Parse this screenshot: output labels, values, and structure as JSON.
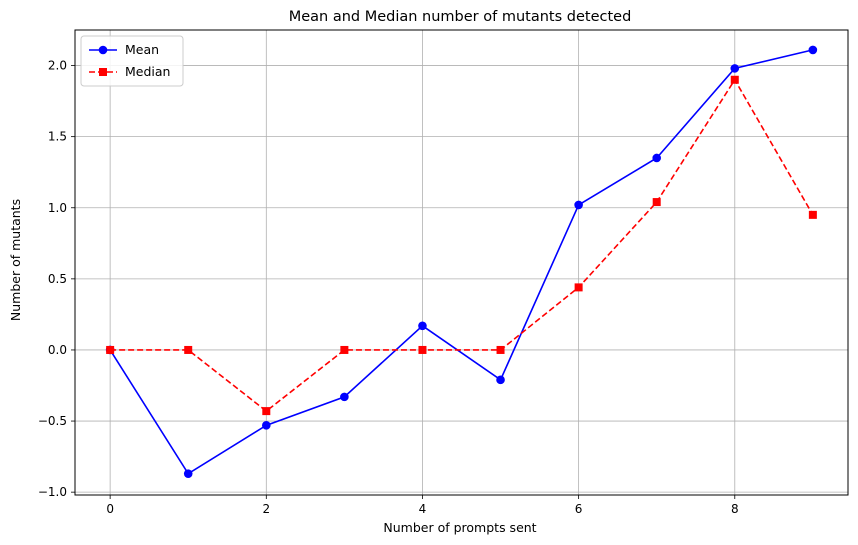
{
  "chart_data": {
    "type": "line",
    "title": "Mean and Median number of mutants detected",
    "xlabel": "Number of prompts sent",
    "ylabel": "Number of mutants",
    "x": [
      0,
      1,
      2,
      3,
      4,
      5,
      6,
      7,
      8,
      9
    ],
    "series": [
      {
        "name": "Mean",
        "values": [
          0.0,
          -0.87,
          -0.53,
          -0.33,
          0.17,
          -0.21,
          1.02,
          1.35,
          1.98,
          2.11
        ],
        "color": "#0000ff",
        "marker": "circle",
        "linestyle": "solid"
      },
      {
        "name": "Median",
        "values": [
          0.0,
          0.0,
          -0.43,
          0.0,
          0.0,
          0.0,
          0.44,
          1.04,
          1.9,
          0.95
        ],
        "color": "#ff0000",
        "marker": "square",
        "linestyle": "dashed"
      }
    ],
    "xlim": [
      -0.45,
      9.45
    ],
    "ylim": [
      -1.02,
      2.25
    ],
    "xticks": [
      0,
      2,
      4,
      6,
      8
    ],
    "xtick_labels": [
      "0",
      "2",
      "4",
      "6",
      "8"
    ],
    "yticks": [
      -1.0,
      -0.5,
      0.0,
      0.5,
      1.0,
      1.5,
      2.0
    ],
    "ytick_labels": [
      "−1.0",
      "−0.5",
      "0.0",
      "0.5",
      "1.0",
      "1.5",
      "2.0"
    ],
    "grid": true,
    "legend_position": "upper left"
  }
}
